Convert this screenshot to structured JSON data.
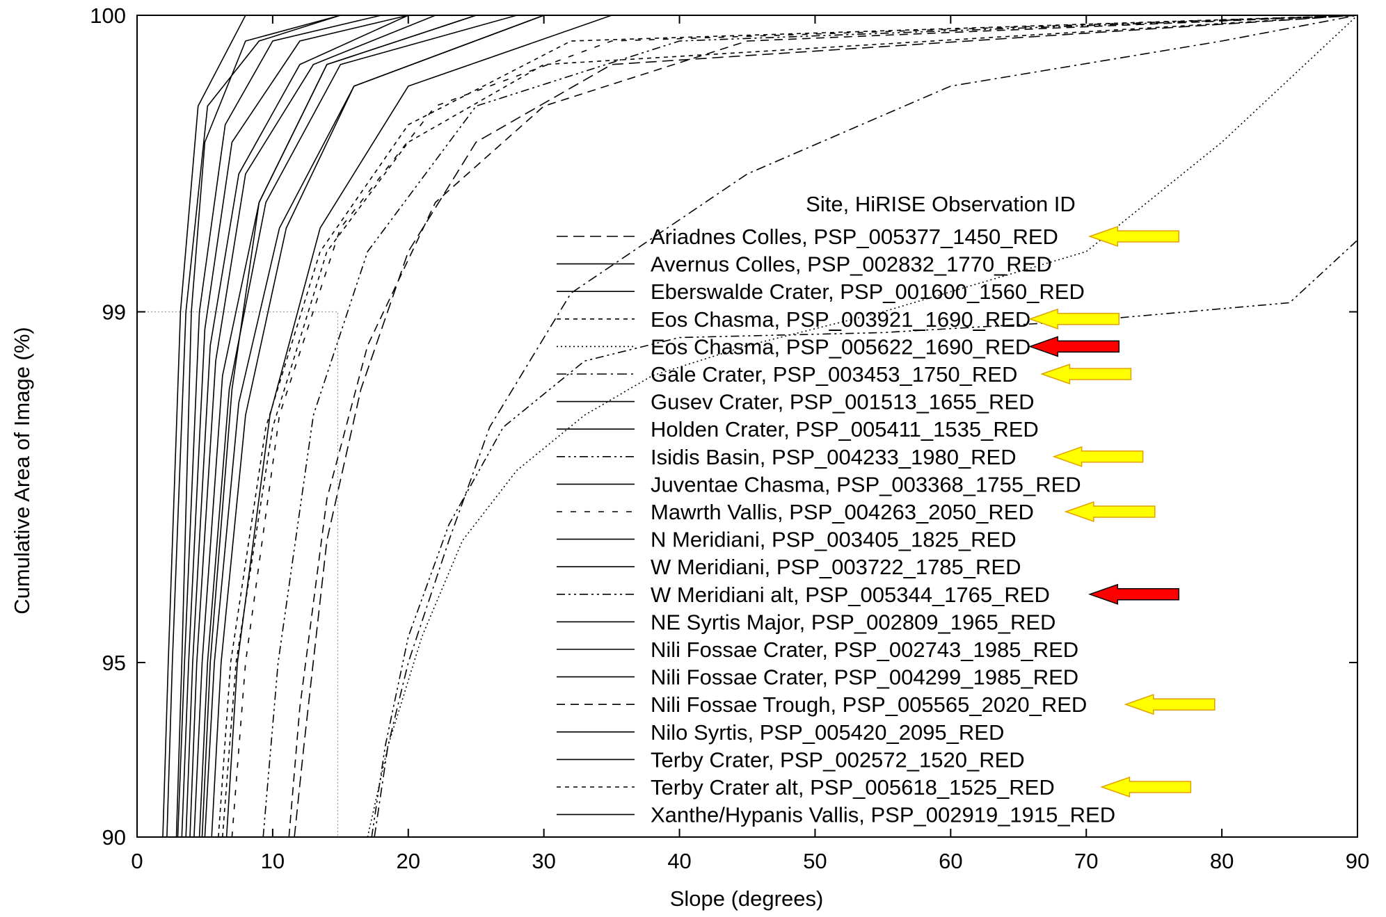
{
  "chart_data": {
    "type": "line",
    "xlabel": "Slope (degrees)",
    "ylabel": "Cumulative Area of Image (%)",
    "xlim": [
      0,
      90
    ],
    "ylim": [
      90,
      100
    ],
    "x_scale": "log-reverse (tick spacing compresses toward 100%)",
    "x_ticks": [
      "0",
      "10",
      "20",
      "30",
      "40",
      "50",
      "60",
      "70",
      "80",
      "90"
    ],
    "y_ticks": [
      "90",
      "95",
      "99",
      "100"
    ],
    "reference_line": {
      "x": 14.8,
      "y": 99
    },
    "grid": false,
    "legend_title": "Site, HiRISE Observation ID",
    "legend_position": "center-right",
    "series": [
      {
        "name": "Ariadnes Colles, PSP_005377_1450_RED",
        "dash": "long-dash",
        "marker_arrow": "yellow",
        "points": [
          [
            11.6,
            90
          ],
          [
            12.3,
            93
          ],
          [
            14.0,
            97
          ],
          [
            16.5,
            98.5
          ],
          [
            20,
            99.3
          ],
          [
            25,
            99.7
          ],
          [
            35,
            99.9
          ],
          [
            90,
            100
          ]
        ]
      },
      {
        "name": "Avernus Colles, PSP_002832_1770_RED",
        "dash": "solid",
        "points": [
          [
            2.9,
            90
          ],
          [
            3.3,
            95
          ],
          [
            4.0,
            99
          ],
          [
            5.0,
            99.7
          ],
          [
            8,
            99.95
          ],
          [
            15,
            100
          ],
          [
            90,
            100
          ]
        ]
      },
      {
        "name": "Eberswalde Crater, PSP_001600_1560_RED",
        "dash": "solid",
        "points": [
          [
            4.8,
            90
          ],
          [
            5.4,
            95
          ],
          [
            7.0,
            98.5
          ],
          [
            9,
            99.5
          ],
          [
            14,
            99.9
          ],
          [
            25,
            100
          ],
          [
            90,
            100
          ]
        ]
      },
      {
        "name": "Eos Chasma, PSP_003921_1690_RED",
        "dash": "short-dash",
        "marker_arrow": "yellow",
        "points": [
          [
            6.3,
            90
          ],
          [
            7.3,
            95
          ],
          [
            10,
            98.2
          ],
          [
            14,
            99.3
          ],
          [
            20,
            99.7
          ],
          [
            30,
            99.9
          ],
          [
            90,
            100
          ]
        ]
      },
      {
        "name": "Eos Chasma, PSP_005622_1690_RED",
        "dash": "dotted",
        "marker_arrow": "red",
        "points": [
          [
            17.0,
            90
          ],
          [
            18.5,
            93
          ],
          [
            21,
            95.5
          ],
          [
            24,
            97
          ],
          [
            28,
            97.8
          ],
          [
            33,
            98.3
          ],
          [
            38,
            98.6
          ],
          [
            45,
            98.8
          ],
          [
            55,
            99.0
          ],
          [
            70,
            99.3
          ],
          [
            80,
            99.7
          ],
          [
            90,
            100
          ]
        ]
      },
      {
        "name": "Gale Crater, PSP_003453_1750_RED",
        "dash": "dash-dot",
        "marker_arrow": "yellow",
        "points": [
          [
            17.5,
            90
          ],
          [
            18.5,
            93
          ],
          [
            20,
            95
          ],
          [
            23,
            97
          ],
          [
            26,
            98.2
          ],
          [
            32,
            99.1
          ],
          [
            45,
            99.6
          ],
          [
            60,
            99.85
          ],
          [
            80,
            99.95
          ],
          [
            90,
            100
          ]
        ]
      },
      {
        "name": "Gusev Crater, PSP_001513_1655_RED",
        "dash": "solid",
        "points": [
          [
            1.9,
            90
          ],
          [
            2.3,
            95
          ],
          [
            3.2,
            99
          ],
          [
            4.5,
            99.8
          ],
          [
            8,
            100
          ],
          [
            90,
            100
          ]
        ]
      },
      {
        "name": "Holden Crater, PSP_005411_1535_RED",
        "dash": "solid",
        "points": [
          [
            5.5,
            90
          ],
          [
            6.2,
            95
          ],
          [
            8.0,
            98.3
          ],
          [
            11,
            99.4
          ],
          [
            16,
            99.85
          ],
          [
            30,
            100
          ],
          [
            90,
            100
          ]
        ]
      },
      {
        "name": "Isidis Basin, PSP_004233_1980_RED",
        "dash": "dash-dot-dot",
        "marker_arrow": "yellow",
        "points": [
          [
            9.3,
            90
          ],
          [
            10.4,
            95
          ],
          [
            13,
            98.3
          ],
          [
            17,
            99.3
          ],
          [
            25,
            99.8
          ],
          [
            40,
            99.95
          ],
          [
            90,
            100
          ]
        ]
      },
      {
        "name": "Juventae Chasma, PSP_003368_1755_RED",
        "dash": "solid",
        "points": [
          [
            4.2,
            90
          ],
          [
            4.8,
            95
          ],
          [
            6.3,
            98.6
          ],
          [
            9,
            99.5
          ],
          [
            14,
            99.9
          ],
          [
            25,
            100
          ],
          [
            90,
            100
          ]
        ]
      },
      {
        "name": "Mawrth Vallis, PSP_004263_2050_RED",
        "dash": "sparse-dash",
        "marker_arrow": "yellow",
        "points": [
          [
            7.0,
            90
          ],
          [
            8.0,
            95
          ],
          [
            10.5,
            98.3
          ],
          [
            15,
            99.4
          ],
          [
            22,
            99.8
          ],
          [
            35,
            99.95
          ],
          [
            90,
            100
          ]
        ]
      },
      {
        "name": "N Meridiani, PSP_003405_1825_RED",
        "dash": "solid",
        "points": [
          [
            3.3,
            90
          ],
          [
            3.8,
            95
          ],
          [
            5.0,
            98.9
          ],
          [
            7,
            99.7
          ],
          [
            12,
            99.95
          ],
          [
            20,
            100
          ],
          [
            90,
            100
          ]
        ]
      },
      {
        "name": "W Meridiani, PSP_003722_1785_RED",
        "dash": "solid",
        "points": [
          [
            3.9,
            90
          ],
          [
            4.4,
            95
          ],
          [
            5.8,
            98.7
          ],
          [
            8,
            99.6
          ],
          [
            13,
            99.9
          ],
          [
            22,
            100
          ],
          [
            90,
            100
          ]
        ]
      },
      {
        "name": "W Meridiani alt, PSP_005344_1765_RED",
        "dash": "dash-dot-dot",
        "marker_arrow": "red",
        "points": [
          [
            17.3,
            90
          ],
          [
            18.3,
            93
          ],
          [
            20,
            95.5
          ],
          [
            23,
            97.2
          ],
          [
            27,
            98.2
          ],
          [
            33,
            98.7
          ],
          [
            40,
            98.85
          ],
          [
            55,
            98.88
          ],
          [
            70,
            98.95
          ],
          [
            85,
            99.05
          ],
          [
            90,
            99.35
          ]
        ]
      },
      {
        "name": "NE Syrtis Major, PSP_002809_1965_RED",
        "dash": "solid",
        "points": [
          [
            4.6,
            90
          ],
          [
            5.2,
            95
          ],
          [
            6.8,
            98.5
          ],
          [
            9.5,
            99.5
          ],
          [
            15,
            99.9
          ],
          [
            28,
            100
          ],
          [
            90,
            100
          ]
        ]
      },
      {
        "name": "Nili Fossae Crater, PSP_002743_1985_RED",
        "dash": "solid",
        "points": [
          [
            5.0,
            90
          ],
          [
            5.7,
            95
          ],
          [
            7.5,
            98.4
          ],
          [
            10.5,
            99.4
          ],
          [
            16,
            99.85
          ],
          [
            30,
            100
          ],
          [
            90,
            100
          ]
        ]
      },
      {
        "name": "Nili Fossae Crater, PSP_004299_1985_RED",
        "dash": "solid",
        "points": [
          [
            3.6,
            90
          ],
          [
            4.1,
            95
          ],
          [
            5.4,
            98.8
          ],
          [
            7.5,
            99.6
          ],
          [
            12,
            99.9
          ],
          [
            20,
            100
          ],
          [
            90,
            100
          ]
        ]
      },
      {
        "name": "Nili Fossae Trough, PSP_005565_2020_RED",
        "dash": "dashed",
        "marker_arrow": "yellow",
        "points": [
          [
            11.2,
            90
          ],
          [
            12.0,
            94
          ],
          [
            14.0,
            97.5
          ],
          [
            17,
            98.8
          ],
          [
            22,
            99.5
          ],
          [
            30,
            99.8
          ],
          [
            45,
            99.95
          ],
          [
            90,
            100
          ]
        ]
      },
      {
        "name": "Nilo Syrtis, PSP_005420_2095_RED",
        "dash": "solid",
        "points": [
          [
            3.0,
            90
          ],
          [
            3.5,
            95
          ],
          [
            4.6,
            99
          ],
          [
            6.5,
            99.75
          ],
          [
            10,
            99.95
          ],
          [
            18,
            100
          ],
          [
            90,
            100
          ]
        ]
      },
      {
        "name": "Terby Crater, PSP_002572_1520_RED",
        "dash": "solid",
        "points": [
          [
            6.6,
            90
          ],
          [
            7.4,
            95
          ],
          [
            9.8,
            98.3
          ],
          [
            13.5,
            99.4
          ],
          [
            20,
            99.85
          ],
          [
            35,
            100
          ],
          [
            90,
            100
          ]
        ]
      },
      {
        "name": "Terby Crater alt, PSP_005618_1525_RED",
        "dash": "short-dash",
        "marker_arrow": "yellow",
        "points": [
          [
            6.0,
            90
          ],
          [
            6.9,
            95
          ],
          [
            9.5,
            98.2
          ],
          [
            13.5,
            99.3
          ],
          [
            20,
            99.75
          ],
          [
            32,
            99.95
          ],
          [
            90,
            100
          ]
        ]
      },
      {
        "name": "Xanthe/Hypanis Vallis, PSP_002919_1915_RED",
        "dash": "solid",
        "points": [
          [
            2.2,
            90
          ],
          [
            2.6,
            95
          ],
          [
            3.6,
            99
          ],
          [
            5.2,
            99.8
          ],
          [
            9,
            99.95
          ],
          [
            15,
            100
          ],
          [
            90,
            100
          ]
        ]
      }
    ]
  },
  "colors": {
    "axis": "#000000",
    "line": "#000000",
    "reference": "#999999",
    "arrow_yellow": "#ffff00",
    "arrow_red": "#ff0000",
    "arrow_stroke_yellow": "#e0a000"
  }
}
